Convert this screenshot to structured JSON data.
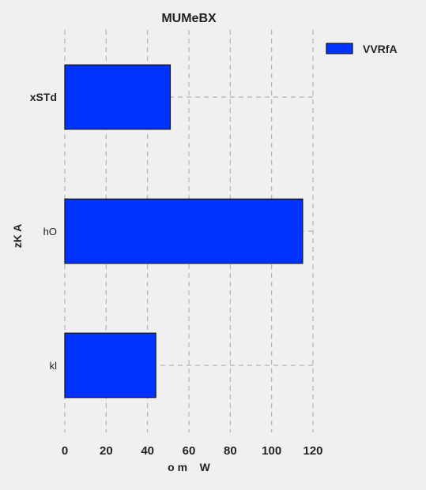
{
  "chart_data": {
    "type": "bar",
    "orientation": "horizontal",
    "title": "MUMeBX",
    "xlabel": "o m    W",
    "ylabel": "zK A",
    "categories": [
      "kl",
      "hO",
      "xSTd"
    ],
    "series": [
      {
        "name": "VVRfA",
        "values": [
          44,
          115,
          51
        ]
      }
    ],
    "xlim": [
      0,
      120
    ],
    "xticks": [
      "0",
      "20",
      "40",
      "60",
      "80",
      "100",
      "120"
    ],
    "grid": true,
    "legend_position": "top-right",
    "colors": {
      "bar": "#0033ff",
      "background": "#f0f0f0",
      "grid": "#b3b3b3"
    }
  }
}
